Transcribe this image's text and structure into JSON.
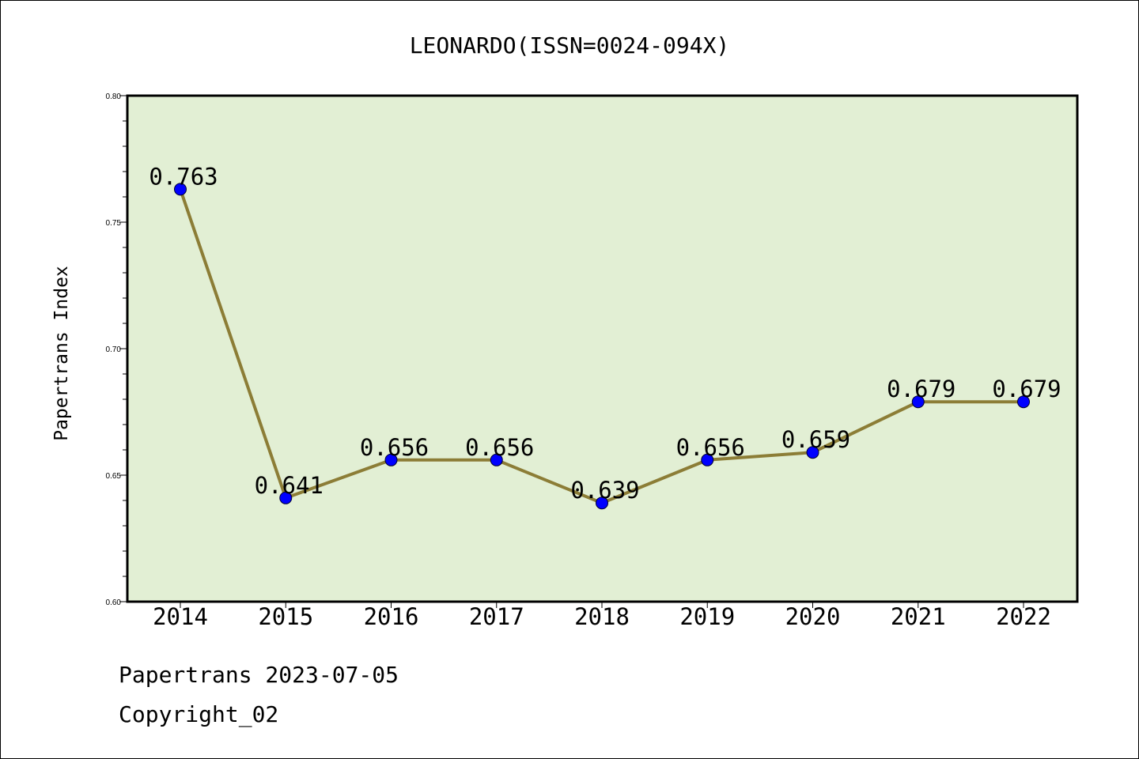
{
  "chart_data": {
    "type": "line",
    "title": "LEONARDO(ISSN=0024-094X)",
    "xlabel": "",
    "ylabel": "Papertrans Index",
    "categories": [
      "2014",
      "2015",
      "2016",
      "2017",
      "2018",
      "2019",
      "2020",
      "2021",
      "2022"
    ],
    "values": [
      0.763,
      0.641,
      0.656,
      0.656,
      0.639,
      0.656,
      0.659,
      0.679,
      0.679
    ],
    "data_labels": [
      "0.763",
      "0.641",
      "0.656",
      "0.656",
      "0.639",
      "0.656",
      "0.659",
      "0.679",
      "0.679"
    ],
    "ylim": [
      0.6,
      0.8
    ],
    "yticks": [
      "0.60",
      "0.65",
      "0.70",
      "0.75",
      "0.80"
    ],
    "grid": false,
    "legend": "none",
    "colors": {
      "plot_background": "#e2efd4",
      "line": "#8c7d36",
      "marker": "#0000ff"
    }
  },
  "footer": {
    "date_line": "Papertrans 2023-07-05",
    "copyright": "Copyright_02"
  }
}
